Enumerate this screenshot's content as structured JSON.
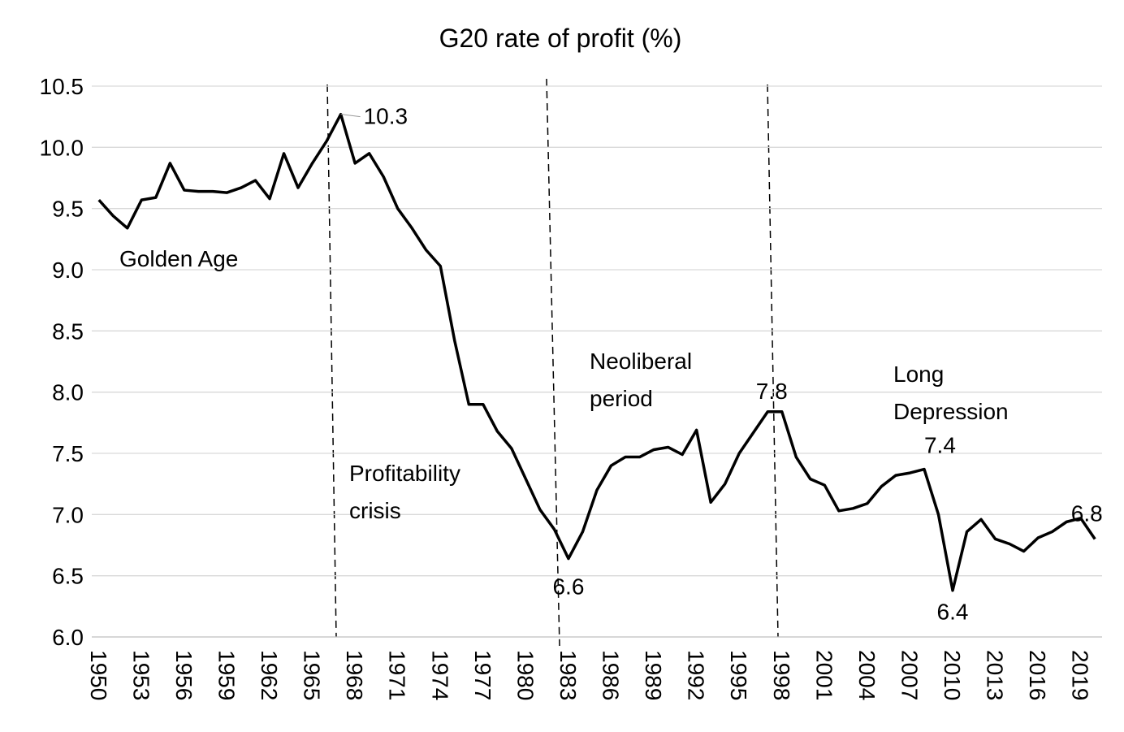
{
  "chart_data": {
    "type": "line",
    "title": "G20 rate of profit (%)",
    "x": [
      1950,
      1951,
      1952,
      1953,
      1954,
      1955,
      1956,
      1957,
      1958,
      1959,
      1960,
      1961,
      1962,
      1963,
      1964,
      1965,
      1966,
      1967,
      1968,
      1969,
      1970,
      1971,
      1972,
      1973,
      1974,
      1975,
      1976,
      1977,
      1978,
      1979,
      1980,
      1981,
      1982,
      1983,
      1984,
      1985,
      1986,
      1987,
      1988,
      1989,
      1990,
      1991,
      1992,
      1993,
      1994,
      1995,
      1996,
      1997,
      1998,
      1999,
      2000,
      2001,
      2002,
      2003,
      2004,
      2005,
      2006,
      2007,
      2008,
      2009,
      2010,
      2011,
      2012,
      2013,
      2014,
      2015,
      2016,
      2017,
      2018,
      2019,
      2020
    ],
    "series": [
      {
        "name": "G20 rate of profit",
        "color": "#000000",
        "values": [
          9.57,
          9.44,
          9.34,
          9.57,
          9.59,
          9.87,
          9.65,
          9.64,
          9.64,
          9.63,
          9.67,
          9.73,
          9.58,
          9.95,
          9.67,
          9.87,
          10.05,
          10.27,
          9.87,
          9.95,
          9.76,
          9.5,
          9.34,
          9.16,
          9.03,
          8.42,
          7.9,
          7.9,
          7.68,
          7.54,
          7.29,
          7.04,
          6.88,
          6.64,
          6.86,
          7.2,
          7.4,
          7.47,
          7.47,
          7.53,
          7.55,
          7.49,
          7.69,
          7.1,
          7.25,
          7.5,
          7.67,
          7.84,
          7.84,
          7.47,
          7.29,
          7.24,
          7.03,
          7.05,
          7.09,
          7.23,
          7.32,
          7.34,
          7.37,
          7.0,
          6.38,
          6.86,
          6.96,
          6.8,
          6.76,
          6.7,
          6.81,
          6.86,
          6.94,
          6.97,
          6.8
        ],
        "value_labels": [
          null,
          null,
          null,
          null,
          null,
          null,
          null,
          null,
          null,
          null,
          null,
          null,
          null,
          null,
          null,
          null,
          null,
          "10.3",
          null,
          null,
          null,
          null,
          null,
          null,
          null,
          null,
          null,
          null,
          null,
          null,
          null,
          null,
          null,
          "6.6",
          null,
          null,
          null,
          null,
          null,
          null,
          null,
          null,
          null,
          null,
          null,
          null,
          null,
          "7.8",
          null,
          null,
          null,
          null,
          null,
          null,
          null,
          null,
          null,
          null,
          "7.4",
          null,
          "6.4",
          null,
          null,
          null,
          null,
          null,
          null,
          null,
          null,
          null,
          "6.8"
        ]
      }
    ],
    "xlim": [
      1949.5,
      2020.5
    ],
    "xticks": [
      1950,
      1953,
      1956,
      1959,
      1962,
      1965,
      1968,
      1971,
      1974,
      1977,
      1980,
      1983,
      1986,
      1989,
      1992,
      1995,
      1998,
      2001,
      2004,
      2007,
      2010,
      2013,
      2016,
      2019
    ],
    "ylim": [
      6,
      10.5
    ],
    "yticks": [
      {
        "value": 6,
        "label": "6.0"
      },
      6.5,
      {
        "value": 7,
        "label": "7.0"
      },
      7.5,
      {
        "value": 8,
        "label": "8.0"
      },
      8.5,
      {
        "value": 9,
        "label": "9.0"
      },
      9.5,
      {
        "value": 10,
        "label": "10.0"
      },
      10.5
    ],
    "grid": true,
    "annotations": [
      [
        "Golden Age"
      ],
      [
        "Profitability",
        "crisis"
      ],
      [
        "Neoliberal",
        "period"
      ],
      [
        "Long",
        "Depression"
      ]
    ]
  }
}
